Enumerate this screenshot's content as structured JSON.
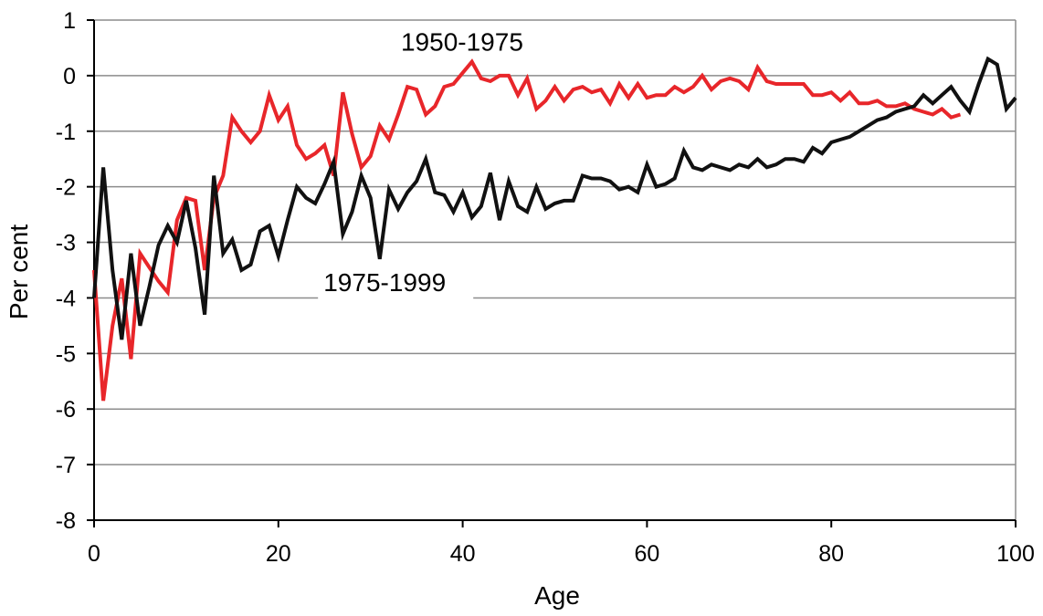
{
  "chart_data": {
    "type": "line",
    "title": "",
    "xlabel": "Age",
    "ylabel": "Per cent",
    "xlim": [
      0,
      100
    ],
    "ylim": [
      -8,
      1
    ],
    "xticks": [
      0,
      20,
      40,
      60,
      80,
      100
    ],
    "yticks": [
      1,
      0,
      -1,
      -2,
      -3,
      -4,
      -5,
      -6,
      -7,
      -8
    ],
    "grid": "horizontal",
    "series": [
      {
        "name": "1950-1975",
        "color": "#e8262a",
        "x": [
          0,
          1,
          2,
          3,
          4,
          5,
          6,
          7,
          8,
          9,
          10,
          11,
          12,
          13,
          14,
          15,
          16,
          17,
          18,
          19,
          20,
          21,
          22,
          23,
          24,
          25,
          26,
          27,
          28,
          29,
          30,
          31,
          32,
          33,
          34,
          35,
          36,
          37,
          38,
          39,
          40,
          41,
          42,
          43,
          44,
          45,
          46,
          47,
          48,
          49,
          50,
          51,
          52,
          53,
          54,
          55,
          56,
          57,
          58,
          59,
          60,
          61,
          62,
          63,
          64,
          65,
          66,
          67,
          68,
          69,
          70,
          71,
          72,
          73,
          74,
          75,
          76,
          77,
          78,
          79,
          80,
          81,
          82,
          83,
          84,
          85,
          86,
          87,
          88,
          89,
          90,
          91,
          92,
          93,
          94
        ],
        "values": [
          -3.5,
          -5.85,
          -4.5,
          -3.65,
          -5.1,
          -3.2,
          -3.45,
          -3.7,
          -3.9,
          -2.6,
          -2.2,
          -2.25,
          -3.5,
          -2.2,
          -1.8,
          -0.75,
          -1.0,
          -1.2,
          -1.0,
          -0.35,
          -0.8,
          -0.55,
          -1.25,
          -1.5,
          -1.4,
          -1.25,
          -1.8,
          -0.3,
          -1.05,
          -1.65,
          -1.45,
          -0.9,
          -1.15,
          -0.7,
          -0.2,
          -0.25,
          -0.7,
          -0.55,
          -0.2,
          -0.15,
          0.05,
          0.25,
          -0.05,
          -0.1,
          0.0,
          0.0,
          -0.35,
          -0.05,
          -0.6,
          -0.45,
          -0.2,
          -0.45,
          -0.25,
          -0.2,
          -0.3,
          -0.25,
          -0.5,
          -0.15,
          -0.4,
          -0.15,
          -0.4,
          -0.35,
          -0.35,
          -0.2,
          -0.3,
          -0.2,
          0.0,
          -0.25,
          -0.1,
          -0.05,
          -0.1,
          -0.25,
          0.15,
          -0.1,
          -0.15,
          -0.15,
          -0.15,
          -0.15,
          -0.35,
          -0.35,
          -0.3,
          -0.45,
          -0.3,
          -0.5,
          -0.5,
          -0.45,
          -0.55,
          -0.55,
          -0.5,
          -0.6,
          -0.65,
          -0.7,
          -0.6,
          -0.75,
          -0.7
        ]
      },
      {
        "name": "1975-1999",
        "color": "#111111",
        "x": [
          0,
          1,
          2,
          3,
          4,
          5,
          6,
          7,
          8,
          9,
          10,
          11,
          12,
          13,
          14,
          15,
          16,
          17,
          18,
          19,
          20,
          21,
          22,
          23,
          24,
          25,
          26,
          27,
          28,
          29,
          30,
          31,
          32,
          33,
          34,
          35,
          36,
          37,
          38,
          39,
          40,
          41,
          42,
          43,
          44,
          45,
          46,
          47,
          48,
          49,
          50,
          51,
          52,
          53,
          54,
          55,
          56,
          57,
          58,
          59,
          60,
          61,
          62,
          63,
          64,
          65,
          66,
          67,
          68,
          69,
          70,
          71,
          72,
          73,
          74,
          75,
          76,
          77,
          78,
          79,
          80,
          81,
          82,
          83,
          84,
          85,
          86,
          87,
          88,
          89,
          90,
          91,
          92,
          93,
          94,
          95,
          96,
          97,
          98,
          99,
          100
        ],
        "values": [
          -4.0,
          -1.65,
          -3.5,
          -4.75,
          -3.2,
          -4.5,
          -3.8,
          -3.05,
          -2.7,
          -3.0,
          -2.25,
          -3.1,
          -4.3,
          -1.8,
          -3.2,
          -2.95,
          -3.5,
          -3.4,
          -2.8,
          -2.7,
          -3.25,
          -2.6,
          -2.0,
          -2.2,
          -2.3,
          -1.95,
          -1.55,
          -2.85,
          -2.45,
          -1.8,
          -2.2,
          -3.3,
          -2.05,
          -2.4,
          -2.1,
          -1.9,
          -1.5,
          -2.1,
          -2.15,
          -2.45,
          -2.1,
          -2.55,
          -2.35,
          -1.75,
          -2.6,
          -1.9,
          -2.35,
          -2.45,
          -2.0,
          -2.4,
          -2.3,
          -2.25,
          -2.25,
          -1.8,
          -1.85,
          -1.85,
          -1.9,
          -2.05,
          -2.0,
          -2.1,
          -1.6,
          -2.0,
          -1.95,
          -1.85,
          -1.35,
          -1.65,
          -1.7,
          -1.6,
          -1.65,
          -1.7,
          -1.6,
          -1.65,
          -1.5,
          -1.65,
          -1.6,
          -1.5,
          -1.5,
          -1.55,
          -1.3,
          -1.4,
          -1.2,
          -1.15,
          -1.1,
          -1.0,
          -0.9,
          -0.8,
          -0.75,
          -0.65,
          -0.6,
          -0.55,
          -0.35,
          -0.5,
          -0.35,
          -0.2,
          -0.45,
          -0.65,
          -0.15,
          0.3,
          0.2,
          -0.6,
          -0.4
        ]
      }
    ]
  }
}
